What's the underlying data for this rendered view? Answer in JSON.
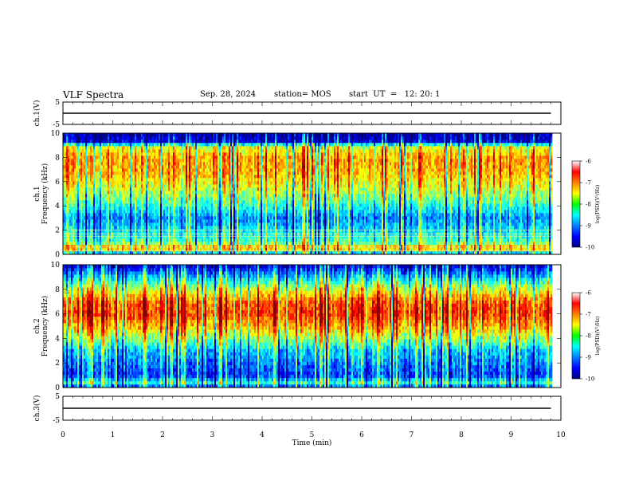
{
  "header": {
    "title": "VLF Spectra",
    "date": "Sep. 28, 2024",
    "station": "station= MOS",
    "start": "start  UT  =   12: 20: 1"
  },
  "chart_data": [
    {
      "type": "line",
      "panel": "ch1-waveform",
      "ylabel": "ch.1(V)",
      "ylim": [
        -5,
        5
      ],
      "yticks": [
        "5",
        "-5"
      ],
      "series": [
        {
          "values": [
            0,
            0
          ]
        }
      ],
      "x": [
        0,
        9.8
      ]
    },
    {
      "type": "heatmap",
      "panel": "ch1-spectrogram",
      "ylabel": "ch.1\nFrequency (kHz)",
      "ylim": [
        0,
        10
      ],
      "yticks": [
        "0",
        "2",
        "4",
        "6",
        "8",
        "10"
      ],
      "x_extent_min": [
        0,
        9.8
      ],
      "colorscale": "jet",
      "colorbar": {
        "label": "log(PSD)(V²/Hz)",
        "range": [
          -10,
          -6
        ],
        "ticks": [
          "-6",
          "-7",
          "-8",
          "-9",
          "-10"
        ]
      },
      "hlines_khz": [
        0.3,
        0.6,
        1.5,
        1.7,
        2.0
      ],
      "band_profile": [
        {
          "f": 0.0,
          "level": -9.2
        },
        {
          "f": 0.5,
          "level": -7.0
        },
        {
          "f": 1.0,
          "level": -8.2
        },
        {
          "f": 2.0,
          "level": -8.6
        },
        {
          "f": 3.0,
          "level": -9.0
        },
        {
          "f": 4.0,
          "level": -8.4
        },
        {
          "f": 5.0,
          "level": -7.9
        },
        {
          "f": 6.0,
          "level": -7.5
        },
        {
          "f": 7.0,
          "level": -7.2
        },
        {
          "f": 8.0,
          "level": -7.2
        },
        {
          "f": 9.0,
          "level": -7.8
        },
        {
          "f": 9.2,
          "level": -9.6
        },
        {
          "f": 10.0,
          "level": -9.9
        }
      ]
    },
    {
      "type": "heatmap",
      "panel": "ch2-spectrogram",
      "ylabel": "ch.2\nFrequency (kHz)",
      "ylim": [
        0,
        10
      ],
      "yticks": [
        "0",
        "2",
        "4",
        "6",
        "8",
        "10"
      ],
      "x_extent_min": [
        0,
        9.8
      ],
      "colorscale": "jet",
      "colorbar": {
        "label": "log(PSD)(V²/Hz)",
        "range": [
          -10,
          -6
        ],
        "ticks": [
          "-6",
          "-7",
          "-8",
          "-9",
          "-10"
        ]
      },
      "hlines_khz": [],
      "band_profile": [
        {
          "f": 0.0,
          "level": -9.6
        },
        {
          "f": 0.3,
          "level": -8.2
        },
        {
          "f": 1.0,
          "level": -9.3
        },
        {
          "f": 2.0,
          "level": -9.0
        },
        {
          "f": 3.0,
          "level": -8.7
        },
        {
          "f": 4.0,
          "level": -7.9
        },
        {
          "f": 5.0,
          "level": -7.2
        },
        {
          "f": 6.0,
          "level": -6.7
        },
        {
          "f": 7.0,
          "level": -6.9
        },
        {
          "f": 8.0,
          "level": -7.7
        },
        {
          "f": 9.0,
          "level": -8.7
        },
        {
          "f": 10.0,
          "level": -9.7
        }
      ]
    },
    {
      "type": "line",
      "panel": "ch3-waveform",
      "ylabel": "ch.3(V)",
      "ylim": [
        -5,
        5
      ],
      "yticks": [
        "5",
        "-5"
      ],
      "series": [
        {
          "values": [
            0,
            0
          ]
        }
      ],
      "x": [
        0,
        9.8
      ]
    }
  ],
  "x_axis": {
    "label": "Time  (min)",
    "range": [
      0,
      10
    ],
    "ticks": [
      "0",
      "1",
      "2",
      "3",
      "4",
      "5",
      "6",
      "7",
      "8",
      "9",
      "10"
    ]
  }
}
